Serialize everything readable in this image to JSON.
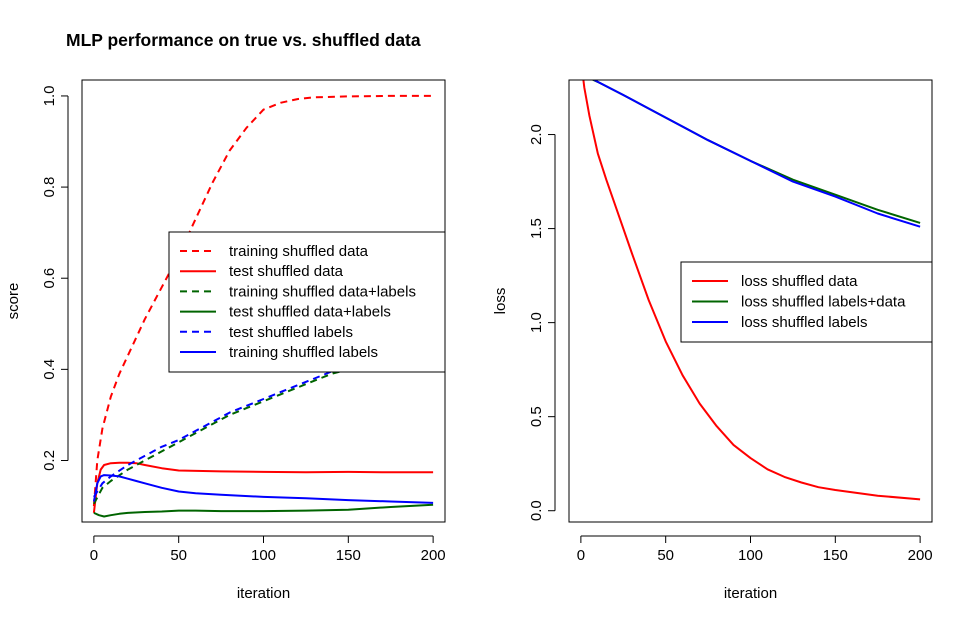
{
  "title": "MLP performance on true vs. shuffled data",
  "chart_data": [
    {
      "type": "line",
      "title": "MLP performance on true vs. shuffled data",
      "xlabel": "iteration",
      "ylabel": "score",
      "xlim": [
        -7,
        207
      ],
      "ylim": [
        0.065,
        1.035
      ],
      "x_ticks": [
        0,
        50,
        100,
        150,
        200
      ],
      "y_ticks": [
        0.2,
        0.4,
        0.6,
        0.8,
        1.0
      ],
      "x_tick_labels": [
        "0",
        "50",
        "100",
        "150",
        "200"
      ],
      "y_tick_labels": [
        "0.2",
        "0.4",
        "0.6",
        "0.8",
        "1.0"
      ],
      "legend_position": "right",
      "grid": false,
      "series": [
        {
          "name": "training shuffled data",
          "color": "#ff0000",
          "dash": "dashed",
          "x": [
            0,
            2,
            5,
            10,
            15,
            20,
            25,
            30,
            40,
            50,
            60,
            70,
            80,
            90,
            100,
            110,
            120,
            130,
            150,
            175,
            200
          ],
          "y": [
            0.1,
            0.2,
            0.27,
            0.34,
            0.39,
            0.43,
            0.47,
            0.51,
            0.58,
            0.65,
            0.73,
            0.81,
            0.88,
            0.93,
            0.97,
            0.985,
            0.993,
            0.997,
            0.999,
            1.0,
            1.0
          ]
        },
        {
          "name": "test shuffled data",
          "color": "#ff0000",
          "dash": "solid",
          "x": [
            0,
            2,
            4,
            6,
            10,
            15,
            20,
            25,
            30,
            40,
            50,
            75,
            100,
            125,
            150,
            175,
            200
          ],
          "y": [
            0.085,
            0.15,
            0.18,
            0.19,
            0.194,
            0.195,
            0.195,
            0.194,
            0.19,
            0.183,
            0.178,
            0.176,
            0.175,
            0.174,
            0.175,
            0.174,
            0.174
          ]
        },
        {
          "name": "training shuffled data+labels",
          "color": "#006400",
          "dash": "dashed",
          "x": [
            0,
            5,
            10,
            20,
            30,
            40,
            50,
            60,
            70,
            80,
            90,
            100,
            110,
            120,
            130,
            140,
            150,
            160
          ],
          "y": [
            0.105,
            0.14,
            0.155,
            0.18,
            0.2,
            0.22,
            0.24,
            0.26,
            0.28,
            0.3,
            0.315,
            0.33,
            0.345,
            0.36,
            0.375,
            0.39,
            0.4,
            0.41
          ]
        },
        {
          "name": "test shuffled data+labels",
          "color": "#006400",
          "dash": "solid",
          "x": [
            0,
            3,
            6,
            10,
            15,
            20,
            30,
            40,
            50,
            60,
            75,
            100,
            125,
            150,
            175,
            200
          ],
          "y": [
            0.085,
            0.08,
            0.077,
            0.08,
            0.083,
            0.085,
            0.087,
            0.088,
            0.09,
            0.09,
            0.089,
            0.089,
            0.09,
            0.092,
            0.098,
            0.103
          ]
        },
        {
          "name": "test shuffled labels",
          "color": "#0000ff",
          "dash": "dashed",
          "x": [
            0,
            5,
            10,
            20,
            30,
            40,
            50,
            60,
            70,
            80,
            90,
            100,
            110,
            120,
            130,
            140,
            150,
            160
          ],
          "y": [
            0.12,
            0.15,
            0.165,
            0.19,
            0.21,
            0.23,
            0.245,
            0.265,
            0.285,
            0.305,
            0.32,
            0.335,
            0.35,
            0.365,
            0.38,
            0.395,
            0.405,
            0.415
          ]
        },
        {
          "name": "training shuffled labels",
          "color": "#0000ff",
          "dash": "solid",
          "x": [
            0,
            2,
            4,
            6,
            10,
            15,
            20,
            25,
            30,
            40,
            50,
            60,
            75,
            100,
            125,
            150,
            175,
            200
          ],
          "y": [
            0.11,
            0.15,
            0.165,
            0.168,
            0.167,
            0.165,
            0.16,
            0.155,
            0.15,
            0.14,
            0.132,
            0.128,
            0.125,
            0.12,
            0.117,
            0.113,
            0.11,
            0.107
          ]
        }
      ]
    },
    {
      "type": "line",
      "title": "",
      "xlabel": "iteration",
      "ylabel": "loss",
      "xlim": [
        -7,
        207
      ],
      "ylim": [
        -0.06,
        2.29
      ],
      "x_ticks": [
        0,
        50,
        100,
        150,
        200
      ],
      "y_ticks": [
        0.0,
        0.5,
        1.0,
        1.5,
        2.0
      ],
      "x_tick_labels": [
        "0",
        "50",
        "100",
        "150",
        "200"
      ],
      "y_tick_labels": [
        "0.0",
        "0.5",
        "1.0",
        "1.5",
        "2.0"
      ],
      "legend_position": "right",
      "grid": false,
      "series": [
        {
          "name": "loss shuffled data",
          "color": "#ff0000",
          "dash": "solid",
          "x": [
            0,
            2,
            5,
            10,
            15,
            20,
            30,
            40,
            50,
            60,
            70,
            80,
            90,
            100,
            110,
            120,
            130,
            140,
            150,
            175,
            200
          ],
          "y": [
            2.4,
            2.25,
            2.1,
            1.9,
            1.76,
            1.63,
            1.37,
            1.12,
            0.9,
            0.72,
            0.57,
            0.45,
            0.35,
            0.28,
            0.22,
            0.18,
            0.15,
            0.125,
            0.11,
            0.08,
            0.06
          ]
        },
        {
          "name": "loss shuffled labels+data",
          "color": "#006400",
          "dash": "solid",
          "x": [
            0,
            10,
            25,
            50,
            75,
            100,
            125,
            150,
            175,
            200
          ],
          "y": [
            2.32,
            2.28,
            2.21,
            2.09,
            1.97,
            1.86,
            1.76,
            1.68,
            1.6,
            1.53
          ]
        },
        {
          "name": "loss shuffled labels",
          "color": "#0000ff",
          "dash": "solid",
          "x": [
            0,
            10,
            25,
            50,
            75,
            100,
            125,
            150,
            175,
            200
          ],
          "y": [
            2.33,
            2.28,
            2.21,
            2.09,
            1.97,
            1.86,
            1.75,
            1.67,
            1.58,
            1.51
          ]
        }
      ]
    }
  ]
}
